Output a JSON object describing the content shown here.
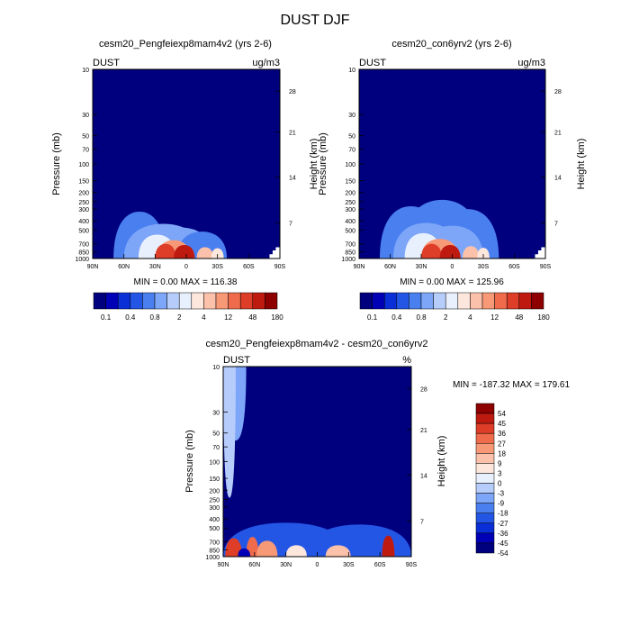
{
  "figure_title": "DUST DJF",
  "colors": {
    "abs_scale": [
      "#00007f",
      "#0000b7",
      "#0a2fd6",
      "#2456e6",
      "#4a7ff0",
      "#7ea6f8",
      "#b6cdfb",
      "#e8f0fd",
      "#fde7dc",
      "#fbc1aa",
      "#f79877",
      "#ef6b4c",
      "#de3d28",
      "#bf1a10",
      "#8e0000"
    ],
    "diff_scale": [
      "#00007f",
      "#0000b7",
      "#0a2fd6",
      "#2456e6",
      "#4a7ff0",
      "#7ea6f8",
      "#b6cdfb",
      "#e8f0fd",
      "#fde7dc",
      "#fbc1aa",
      "#f79877",
      "#ef6b4c",
      "#de3d28",
      "#bf1a10",
      "#8e0000"
    ]
  },
  "chart_data": [
    {
      "type": "heatmap",
      "title": "cesm20_Pengfeiexp8mam4v2 (yrs 2-6)",
      "variable": "DUST",
      "units": "ug/m3",
      "ylabel": "Pressure (mb)",
      "ylabel_right": "Height (km)",
      "xlim": [
        90,
        -90
      ],
      "ylim": [
        1000,
        10
      ],
      "yscale": "log",
      "x_ticks": [
        {
          "v": 90,
          "t": "90N"
        },
        {
          "v": 60,
          "t": "60N"
        },
        {
          "v": 30,
          "t": "30N"
        },
        {
          "v": 0,
          "t": "0"
        },
        {
          "v": -30,
          "t": "30S"
        },
        {
          "v": -60,
          "t": "60S"
        },
        {
          "v": -90,
          "t": "90S"
        }
      ],
      "y_ticks": [
        {
          "v": 10,
          "t": "10"
        },
        {
          "v": 30,
          "t": "30"
        },
        {
          "v": 50,
          "t": "50"
        },
        {
          "v": 70,
          "t": "70"
        },
        {
          "v": 100,
          "t": "100"
        },
        {
          "v": 150,
          "t": "150"
        },
        {
          "v": 200,
          "t": "200"
        },
        {
          "v": 250,
          "t": "250"
        },
        {
          "v": 300,
          "t": "300"
        },
        {
          "v": 400,
          "t": "400"
        },
        {
          "v": 500,
          "t": "500"
        },
        {
          "v": 700,
          "t": "700"
        },
        {
          "v": 850,
          "t": "850"
        },
        {
          "v": 1000,
          "t": "1000"
        }
      ],
      "height_ticks": [
        {
          "p": 17,
          "t": "28"
        },
        {
          "p": 46,
          "t": "21"
        },
        {
          "p": 138,
          "t": "14"
        },
        {
          "p": 420,
          "t": "7"
        }
      ],
      "stats_text": "MIN =   0.00  MAX = 116.38",
      "colorbar_labels": [
        "0.1",
        "0.4",
        "0.8",
        "2",
        "4",
        "12",
        "48",
        "180"
      ],
      "features": [
        {
          "lat": 45,
          "p_top": 320,
          "lat_width": 25,
          "level": 4
        },
        {
          "lat": 22,
          "p_top": 430,
          "lat_width": 38,
          "level": 5
        },
        {
          "lat": 5,
          "p_top": 470,
          "lat_width": 30,
          "level": 5
        },
        {
          "lat": -15,
          "p_top": 520,
          "lat_width": 24,
          "level": 4
        },
        {
          "lat": 28,
          "p_top": 560,
          "lat_width": 18,
          "level": 7
        },
        {
          "lat": 12,
          "p_top": 640,
          "lat_width": 16,
          "level": 10
        },
        {
          "lat": 20,
          "p_top": 700,
          "lat_width": 10,
          "level": 12
        },
        {
          "lat": 2,
          "p_top": 720,
          "lat_width": 10,
          "level": 13
        },
        {
          "lat": -18,
          "p_top": 760,
          "lat_width": 8,
          "level": 9
        },
        {
          "lat": -30,
          "p_top": 780,
          "lat_width": 6,
          "level": 8
        }
      ]
    },
    {
      "type": "heatmap",
      "title": "cesm20_con6yrv2 (yrs 2-6)",
      "variable": "DUST",
      "units": "ug/m3",
      "ylabel": "Pressure (mb)",
      "ylabel_right": "Height (km)",
      "xlim": [
        90,
        -90
      ],
      "ylim": [
        1000,
        10
      ],
      "yscale": "log",
      "x_ticks": [
        {
          "v": 90,
          "t": "90N"
        },
        {
          "v": 60,
          "t": "60N"
        },
        {
          "v": 30,
          "t": "30N"
        },
        {
          "v": 0,
          "t": "0"
        },
        {
          "v": -30,
          "t": "30S"
        },
        {
          "v": -60,
          "t": "60S"
        },
        {
          "v": -90,
          "t": "90S"
        }
      ],
      "y_ticks": [
        {
          "v": 10,
          "t": "10"
        },
        {
          "v": 30,
          "t": "30"
        },
        {
          "v": 50,
          "t": "50"
        },
        {
          "v": 70,
          "t": "70"
        },
        {
          "v": 100,
          "t": "100"
        },
        {
          "v": 150,
          "t": "150"
        },
        {
          "v": 200,
          "t": "200"
        },
        {
          "v": 250,
          "t": "250"
        },
        {
          "v": 300,
          "t": "300"
        },
        {
          "v": 400,
          "t": "400"
        },
        {
          "v": 500,
          "t": "500"
        },
        {
          "v": 700,
          "t": "700"
        },
        {
          "v": 850,
          "t": "850"
        },
        {
          "v": 1000,
          "t": "1000"
        }
      ],
      "height_ticks": [
        {
          "p": 17,
          "t": "28"
        },
        {
          "p": 46,
          "t": "21"
        },
        {
          "p": 138,
          "t": "14"
        },
        {
          "p": 420,
          "t": "7"
        }
      ],
      "stats_text": "MIN =   0.00  MAX = 125.96",
      "colorbar_labels": [
        "0.1",
        "0.4",
        "0.8",
        "2",
        "4",
        "12",
        "48",
        "180"
      ],
      "features": [
        {
          "lat": 40,
          "p_top": 280,
          "lat_width": 30,
          "level": 4
        },
        {
          "lat": 10,
          "p_top": 240,
          "lat_width": 40,
          "level": 4
        },
        {
          "lat": -15,
          "p_top": 300,
          "lat_width": 30,
          "level": 4
        },
        {
          "lat": 25,
          "p_top": 420,
          "lat_width": 32,
          "level": 5
        },
        {
          "lat": 0,
          "p_top": 450,
          "lat_width": 30,
          "level": 5
        },
        {
          "lat": 28,
          "p_top": 540,
          "lat_width": 18,
          "level": 7
        },
        {
          "lat": 12,
          "p_top": 620,
          "lat_width": 18,
          "level": 10
        },
        {
          "lat": 20,
          "p_top": 700,
          "lat_width": 10,
          "level": 12
        },
        {
          "lat": 2,
          "p_top": 720,
          "lat_width": 10,
          "level": 13
        },
        {
          "lat": -18,
          "p_top": 740,
          "lat_width": 8,
          "level": 9
        },
        {
          "lat": -30,
          "p_top": 770,
          "lat_width": 6,
          "level": 8
        }
      ]
    },
    {
      "type": "heatmap",
      "title": "cesm20_Pengfeiexp8mam4v2 - cesm20_con6yrv2",
      "variable": "DUST",
      "units": "%",
      "ylabel": "Pressure (mb)",
      "ylabel_right": "Height (km)",
      "xlim": [
        90,
        -90
      ],
      "ylim": [
        1000,
        10
      ],
      "yscale": "log",
      "x_ticks": [
        {
          "v": 90,
          "t": "90N"
        },
        {
          "v": 60,
          "t": "60N"
        },
        {
          "v": 30,
          "t": "30N"
        },
        {
          "v": 0,
          "t": "0"
        },
        {
          "v": -30,
          "t": "30S"
        },
        {
          "v": -60,
          "t": "60S"
        },
        {
          "v": -90,
          "t": "90S"
        }
      ],
      "y_ticks": [
        {
          "v": 10,
          "t": "10"
        },
        {
          "v": 30,
          "t": "30"
        },
        {
          "v": 50,
          "t": "50"
        },
        {
          "v": 70,
          "t": "70"
        },
        {
          "v": 100,
          "t": "100"
        },
        {
          "v": 150,
          "t": "150"
        },
        {
          "v": 200,
          "t": "200"
        },
        {
          "v": 250,
          "t": "250"
        },
        {
          "v": 300,
          "t": "300"
        },
        {
          "v": 400,
          "t": "400"
        },
        {
          "v": 500,
          "t": "500"
        },
        {
          "v": 700,
          "t": "700"
        },
        {
          "v": 850,
          "t": "850"
        },
        {
          "v": 1000,
          "t": "1000"
        }
      ],
      "height_ticks": [
        {
          "p": 17,
          "t": "28"
        },
        {
          "p": 46,
          "t": "21"
        },
        {
          "p": 138,
          "t": "14"
        },
        {
          "p": 420,
          "t": "7"
        }
      ],
      "stats_text": "MIN = -187.32  MAX = 179.61",
      "colorbar_labels": [
        "54",
        "45",
        "36",
        "27",
        "18",
        "9",
        "3",
        "0",
        "-3",
        "-9",
        "-18",
        "-27",
        "-36",
        "-45",
        "-54"
      ],
      "features": [
        {
          "lat": 78,
          "p_top": 10,
          "lat_width": 10,
          "level": 5
        },
        {
          "lat": 84,
          "p_top": 40,
          "lat_width": 6,
          "level": 6
        },
        {
          "lat": 30,
          "p_top": 440,
          "lat_width": 60,
          "level": 3
        },
        {
          "lat": -40,
          "p_top": 460,
          "lat_width": 50,
          "level": 3
        },
        {
          "lat": 80,
          "p_top": 640,
          "lat_width": 8,
          "level": 12
        },
        {
          "lat": 62,
          "p_top": 620,
          "lat_width": 6,
          "level": 11
        },
        {
          "lat": 48,
          "p_top": 680,
          "lat_width": 10,
          "level": 10
        },
        {
          "lat": 20,
          "p_top": 760,
          "lat_width": 10,
          "level": 8
        },
        {
          "lat": -20,
          "p_top": 760,
          "lat_width": 12,
          "level": 9
        },
        {
          "lat": -68,
          "p_top": 600,
          "lat_width": 6,
          "level": 13
        },
        {
          "lat": 70,
          "p_top": 820,
          "lat_width": 6,
          "level": 1
        }
      ]
    }
  ]
}
